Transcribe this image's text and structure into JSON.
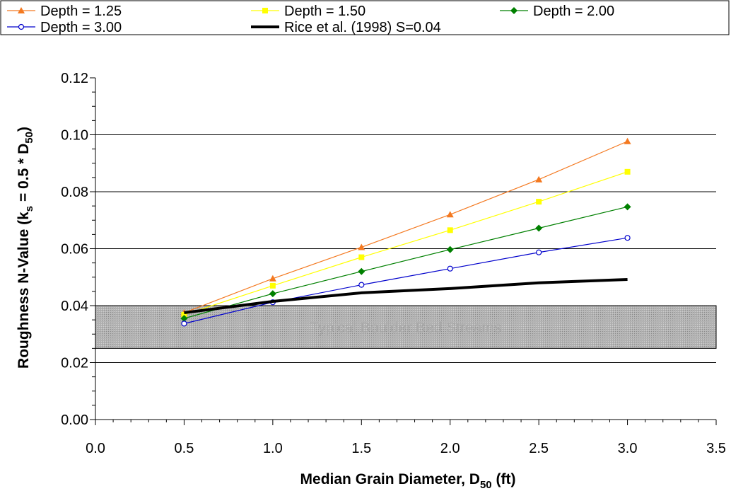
{
  "chart_data": {
    "type": "line",
    "title": "",
    "xlabel": "Median Grain Diameter, D",
    "xlabel_sub": "50",
    "xlabel_unit": " (ft)",
    "ylabel_parts": [
      "Roughness N-Value (k",
      "s",
      " = 0.5 * D",
      "50",
      ")"
    ],
    "xlim": [
      0,
      3.5
    ],
    "ylim": [
      0,
      0.12
    ],
    "x_ticks": [
      "0.0",
      "0.5",
      "1.0",
      "1.5",
      "2.0",
      "2.5",
      "3.0",
      "3.5"
    ],
    "y_ticks": [
      "0.00",
      "0.02",
      "0.04",
      "0.06",
      "0.08",
      "0.10",
      "0.12"
    ],
    "grid": "horizontal major lines at 0.04, 0.06, 0.08, 0.10",
    "legend_position": "top",
    "band": {
      "label": "Typical Boulder Bed Streams",
      "y_range": [
        0.025,
        0.04
      ]
    },
    "series": [
      {
        "name": "Depth = 1.25",
        "color": "#f47920",
        "marker": "triangle",
        "x": [
          0.5,
          1.0,
          1.5,
          2.0,
          2.5,
          3.0
        ],
        "y": [
          0.0375,
          0.0495,
          0.0605,
          0.072,
          0.0843,
          0.0977
        ]
      },
      {
        "name": "Depth = 1.50",
        "color": "#ffff00",
        "marker": "square",
        "x": [
          0.5,
          1.0,
          1.5,
          2.0,
          2.5,
          3.0
        ],
        "y": [
          0.0368,
          0.047,
          0.057,
          0.0665,
          0.0765,
          0.087
        ]
      },
      {
        "name": "Depth = 2.00",
        "color": "#008000",
        "marker": "diamond",
        "x": [
          0.5,
          1.0,
          1.5,
          2.0,
          2.5,
          3.0
        ],
        "y": [
          0.0355,
          0.0442,
          0.052,
          0.0597,
          0.0672,
          0.0747
        ]
      },
      {
        "name": "Depth = 3.00",
        "color": "#0000cc",
        "marker": "circle-open",
        "x": [
          0.5,
          1.0,
          1.5,
          2.0,
          2.5,
          3.0
        ],
        "y": [
          0.0337,
          0.0412,
          0.0473,
          0.053,
          0.0587,
          0.0638
        ]
      },
      {
        "name": "Rice et al. (1998) S=0.04",
        "color": "#000000",
        "marker": "none",
        "thick": true,
        "x": [
          0.5,
          1.0,
          1.5,
          2.0,
          2.5,
          3.0
        ],
        "y": [
          0.0375,
          0.0415,
          0.0445,
          0.046,
          0.048,
          0.0492
        ]
      }
    ]
  }
}
